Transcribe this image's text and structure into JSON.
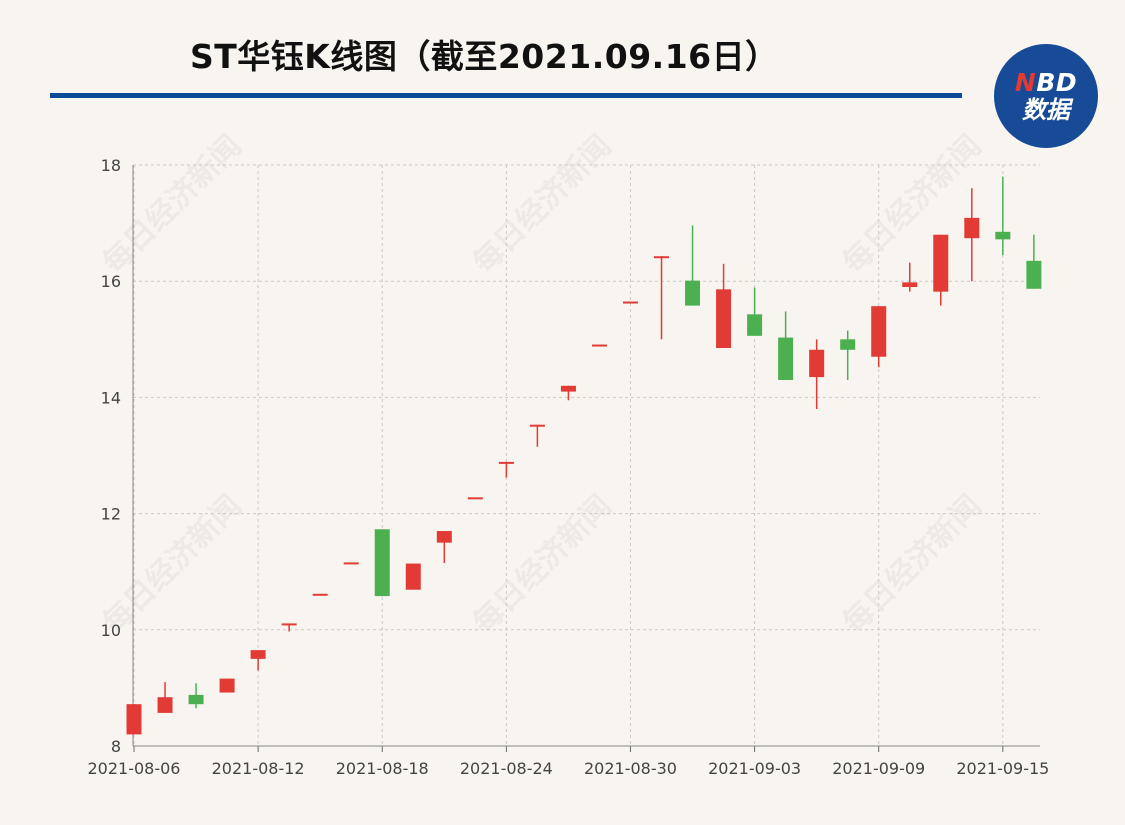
{
  "title": "ST华钰K线图（截至2021.09.16日）",
  "logo": {
    "top_n": "N",
    "top_rest": "BD",
    "bottom": "数据"
  },
  "watermark": "每日经济新闻",
  "colors": {
    "up": "#e23b35",
    "down": "#4caf50",
    "title_rule": "#0d4a9a",
    "logo_bg": "#184b97"
  },
  "chart_data": {
    "type": "candlestick",
    "title": "ST华钰K线图（截至2021.09.16日）",
    "ylim": [
      8,
      18
    ],
    "yticks": [
      8,
      10,
      12,
      14,
      16,
      18
    ],
    "xtick_labels": [
      "2021-08-06",
      "2021-08-12",
      "2021-08-18",
      "2021-08-24",
      "2021-08-30",
      "2021-09-03",
      "2021-09-09",
      "2021-09-15"
    ],
    "grid": true,
    "candles": [
      {
        "date": "2021-08-06",
        "open": 8.2,
        "close": 8.72,
        "low": 8.2,
        "high": 8.72
      },
      {
        "date": "2021-08-09",
        "open": 8.57,
        "close": 8.84,
        "low": 8.57,
        "high": 9.1
      },
      {
        "date": "2021-08-10",
        "open": 8.88,
        "close": 8.72,
        "low": 8.65,
        "high": 9.08
      },
      {
        "date": "2021-08-11",
        "open": 8.92,
        "close": 9.16,
        "low": 8.92,
        "high": 9.16
      },
      {
        "date": "2021-08-12",
        "open": 9.5,
        "close": 9.65,
        "low": 9.3,
        "high": 9.65
      },
      {
        "date": "2021-08-13",
        "open": 10.11,
        "close": 10.11,
        "low": 9.97,
        "high": 10.11
      },
      {
        "date": "2021-08-16",
        "open": 10.62,
        "close": 10.62,
        "low": 10.62,
        "high": 10.62
      },
      {
        "date": "2021-08-17",
        "open": 11.16,
        "close": 11.16,
        "low": 11.16,
        "high": 11.16
      },
      {
        "date": "2021-08-18",
        "open": 11.73,
        "close": 10.58,
        "low": 10.58,
        "high": 11.73
      },
      {
        "date": "2021-08-19",
        "open": 10.69,
        "close": 11.14,
        "low": 10.69,
        "high": 11.14
      },
      {
        "date": "2021-08-20",
        "open": 11.5,
        "close": 11.7,
        "low": 11.15,
        "high": 11.7
      },
      {
        "date": "2021-08-23",
        "open": 12.28,
        "close": 12.28,
        "low": 12.28,
        "high": 12.28
      },
      {
        "date": "2021-08-24",
        "open": 12.89,
        "close": 12.89,
        "low": 12.62,
        "high": 12.89
      },
      {
        "date": "2021-08-25",
        "open": 13.53,
        "close": 13.53,
        "low": 13.15,
        "high": 13.53
      },
      {
        "date": "2021-08-26",
        "open": 14.1,
        "close": 14.2,
        "low": 13.95,
        "high": 14.2
      },
      {
        "date": "2021-08-27",
        "open": 14.91,
        "close": 14.91,
        "low": 14.91,
        "high": 14.91
      },
      {
        "date": "2021-08-30",
        "open": 15.65,
        "close": 15.65,
        "low": 15.65,
        "high": 15.65
      },
      {
        "date": "2021-08-31",
        "open": 16.43,
        "close": 16.43,
        "low": 15.0,
        "high": 16.43
      },
      {
        "date": "2021-09-01",
        "open": 16.01,
        "close": 15.58,
        "low": 15.58,
        "high": 16.96
      },
      {
        "date": "2021-09-02",
        "open": 14.85,
        "close": 15.86,
        "low": 14.85,
        "high": 16.3
      },
      {
        "date": "2021-09-03",
        "open": 15.43,
        "close": 15.06,
        "low": 15.06,
        "high": 15.89
      },
      {
        "date": "2021-09-06",
        "open": 15.03,
        "close": 14.3,
        "low": 14.3,
        "high": 15.48
      },
      {
        "date": "2021-09-07",
        "open": 14.35,
        "close": 14.82,
        "low": 13.8,
        "high": 15.0
      },
      {
        "date": "2021-09-08",
        "open": 15.0,
        "close": 14.82,
        "low": 14.3,
        "high": 15.15
      },
      {
        "date": "2021-09-09",
        "open": 14.7,
        "close": 15.57,
        "low": 14.52,
        "high": 15.57
      },
      {
        "date": "2021-09-10",
        "open": 15.9,
        "close": 15.98,
        "low": 15.82,
        "high": 16.32
      },
      {
        "date": "2021-09-13",
        "open": 15.82,
        "close": 16.8,
        "low": 15.58,
        "high": 16.8
      },
      {
        "date": "2021-09-14",
        "open": 16.74,
        "close": 17.09,
        "low": 16.0,
        "high": 17.6
      },
      {
        "date": "2021-09-15",
        "open": 16.85,
        "close": 16.72,
        "low": 16.45,
        "high": 17.8
      },
      {
        "date": "2021-09-16",
        "open": 16.35,
        "close": 15.87,
        "low": 15.87,
        "high": 16.8
      }
    ]
  }
}
